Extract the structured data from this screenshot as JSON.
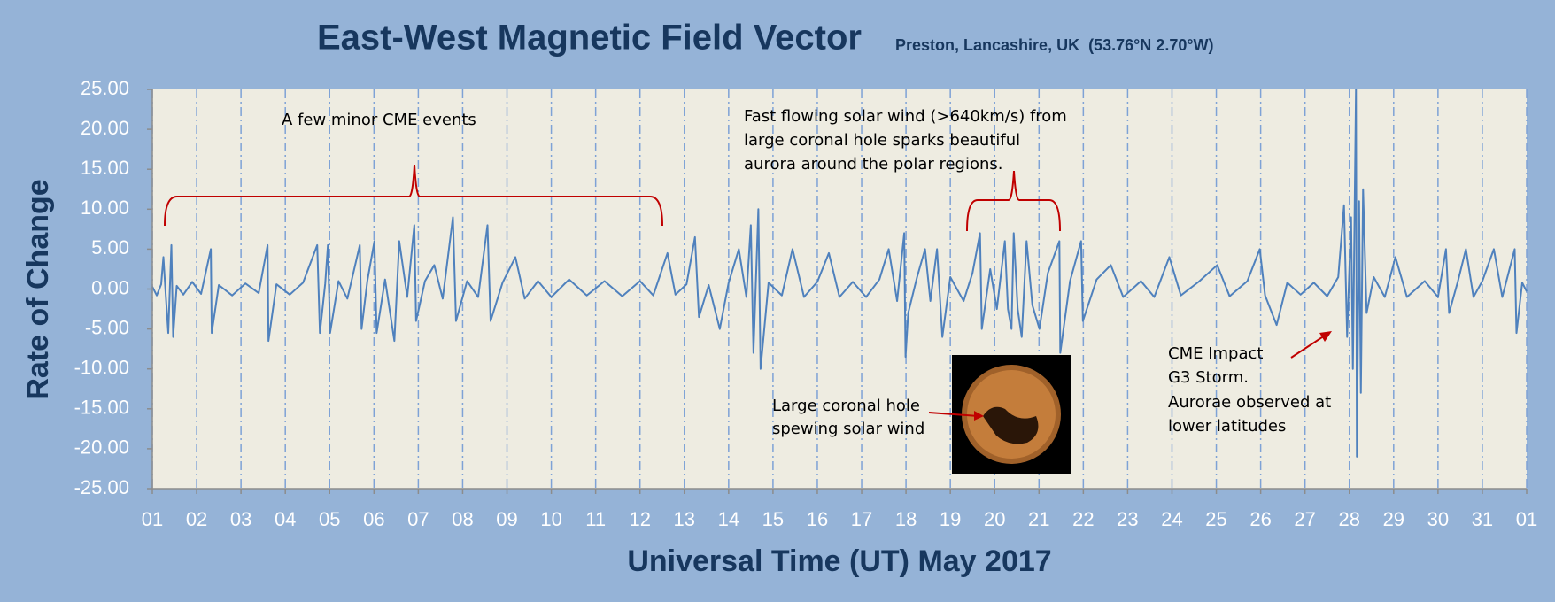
{
  "chart_data": {
    "type": "line",
    "title": "East-West Magnetic Field Vector",
    "subtitle": "Preston, Lancashire, UK  (53.76°N 2.70°W)",
    "x_label": "Universal Time (UT) May 2017",
    "y_label": "Rate of Change",
    "color": "#4f81bd",
    "grid": "x",
    "xlim": [
      1,
      32
    ],
    "ylim": [
      -25,
      25
    ],
    "xticks": [
      {
        "value": 1,
        "label": "01"
      },
      {
        "value": 2,
        "label": "02"
      },
      {
        "value": 3,
        "label": "03"
      },
      {
        "value": 4,
        "label": "04"
      },
      {
        "value": 5,
        "label": "05"
      },
      {
        "value": 6,
        "label": "06"
      },
      {
        "value": 7,
        "label": "07"
      },
      {
        "value": 8,
        "label": "08"
      },
      {
        "value": 9,
        "label": "09"
      },
      10,
      11,
      12,
      13,
      14,
      15,
      16,
      17,
      18,
      19,
      20,
      21,
      22,
      23,
      24,
      25,
      26,
      27,
      28,
      29,
      30,
      31,
      {
        "value": 32,
        "label": "01"
      }
    ],
    "yticks": [
      {
        "value": 25,
        "label": "25.00"
      },
      {
        "value": 20,
        "label": "20.00"
      },
      {
        "value": 15,
        "label": "15.00"
      },
      {
        "value": 10,
        "label": "10.00"
      },
      {
        "value": 5,
        "label": "5.00"
      },
      {
        "value": 0,
        "label": "0.00"
      },
      {
        "value": -5,
        "label": "-5.00"
      },
      {
        "value": -10,
        "label": "-10.00"
      },
      {
        "value": -15,
        "label": "-15.00"
      },
      {
        "value": -20,
        "label": "-20.00"
      },
      {
        "value": -25,
        "label": "-25.00"
      }
    ],
    "annotations": [
      [
        "A few minor CME events"
      ],
      [
        "Fast flowing solar wind (>640km/s) from",
        "large coronal hole sparks beautiful",
        "aurora around the polar regions."
      ],
      [
        "Large coronal hole",
        "spewing solar wind"
      ],
      [
        "CME Impact",
        "G3 Storm.",
        "Aurorae observed at",
        "lower latitudes"
      ]
    ],
    "x": [
      1.0,
      1.1,
      1.2,
      1.25,
      1.3,
      1.36,
      1.4,
      1.43,
      1.47,
      1.55,
      1.7,
      1.9,
      2.1,
      2.32,
      2.34,
      2.5,
      2.8,
      3.1,
      3.4,
      3.6,
      3.62,
      3.8,
      4.1,
      4.4,
      4.72,
      4.78,
      4.9,
      4.96,
      5.01,
      5.2,
      5.4,
      5.68,
      5.72,
      5.85,
      6.01,
      6.06,
      6.25,
      6.46,
      6.57,
      6.75,
      6.91,
      6.95,
      7.15,
      7.36,
      7.55,
      7.78,
      7.85,
      8.1,
      8.35,
      8.56,
      8.63,
      8.9,
      9.19,
      9.4,
      9.7,
      10.0,
      10.4,
      10.8,
      11.2,
      11.6,
      12.0,
      12.3,
      12.62,
      12.8,
      13.05,
      13.24,
      13.33,
      13.55,
      13.8,
      14.0,
      14.23,
      14.4,
      14.5,
      14.56,
      14.67,
      14.72,
      14.9,
      15.2,
      15.44,
      15.7,
      16.0,
      16.26,
      16.5,
      16.8,
      17.1,
      17.4,
      17.61,
      17.8,
      17.96,
      17.99,
      18.05,
      18.25,
      18.43,
      18.55,
      18.7,
      18.82,
      19.0,
      19.3,
      19.5,
      19.67,
      19.71,
      19.9,
      20.05,
      20.23,
      20.3,
      20.38,
      20.43,
      20.52,
      20.61,
      20.72,
      20.85,
      21.01,
      21.2,
      21.46,
      21.48,
      21.7,
      21.95,
      21.99,
      22.3,
      22.62,
      22.9,
      23.3,
      23.6,
      23.94,
      24.2,
      24.6,
      25.02,
      25.3,
      25.7,
      25.98,
      26.1,
      26.36,
      26.6,
      26.9,
      27.2,
      27.5,
      27.75,
      27.88,
      27.95,
      28.04,
      28.08,
      28.15,
      28.17,
      28.22,
      28.26,
      28.31,
      28.39,
      28.55,
      28.8,
      29.04,
      29.3,
      29.7,
      30.0,
      30.18,
      30.25,
      30.45,
      30.63,
      30.8,
      31.0,
      31.26,
      31.45,
      31.73,
      31.77,
      31.9,
      32.0
    ],
    "values": [
      0.3,
      -0.8,
      0.6,
      4.0,
      -0.5,
      -5.5,
      0.8,
      5.5,
      -6.0,
      0.4,
      -0.7,
      0.9,
      -0.6,
      5.0,
      -5.5,
      0.5,
      -0.8,
      0.7,
      -0.5,
      5.5,
      -6.5,
      0.6,
      -0.7,
      0.8,
      5.5,
      -5.5,
      0.7,
      5.5,
      -5.5,
      1.0,
      -1.2,
      5.5,
      -5.0,
      1.0,
      6.0,
      -5.5,
      1.2,
      -6.5,
      6.0,
      -1.0,
      8.0,
      -4.0,
      1.0,
      3.0,
      -1.2,
      9.0,
      -4.0,
      1.0,
      -1.0,
      8.0,
      -4.0,
      0.8,
      4.0,
      -1.2,
      1.0,
      -1.0,
      1.2,
      -0.8,
      1.0,
      -0.9,
      1.0,
      -0.8,
      4.5,
      -0.7,
      0.6,
      6.5,
      -3.5,
      0.5,
      -5.0,
      0.8,
      5.0,
      -1.0,
      8.0,
      -8.0,
      10.0,
      -10.0,
      0.8,
      -0.8,
      5.0,
      -1.0,
      0.9,
      4.5,
      -1.0,
      0.9,
      -1.0,
      1.2,
      5.0,
      -1.5,
      7.0,
      -8.5,
      -3.0,
      1.5,
      5.0,
      -1.5,
      5.0,
      -6.0,
      1.5,
      -1.5,
      2.0,
      7.0,
      -5.0,
      2.5,
      -2.5,
      6.0,
      -2.5,
      -5.0,
      7.0,
      -2.5,
      -6.0,
      6.0,
      -2.0,
      -5.0,
      2.0,
      6.0,
      -8.0,
      1.0,
      6.0,
      -4.0,
      1.2,
      3.0,
      -1.0,
      1.0,
      -1.0,
      4.0,
      -0.8,
      0.9,
      3.0,
      -0.9,
      1.0,
      5.0,
      -0.8,
      -4.5,
      0.8,
      -0.7,
      0.8,
      -0.9,
      1.5,
      10.5,
      -6.0,
      9.0,
      -10.0,
      25.0,
      -21.0,
      11.0,
      -13.0,
      12.5,
      -3.0,
      1.5,
      -1.0,
      4.0,
      -1.0,
      1.0,
      -1.0,
      5.0,
      -3.0,
      1.0,
      5.0,
      -1.0,
      1.0,
      5.0,
      -1.0,
      5.0,
      -5.5,
      0.8,
      -0.3
    ]
  }
}
